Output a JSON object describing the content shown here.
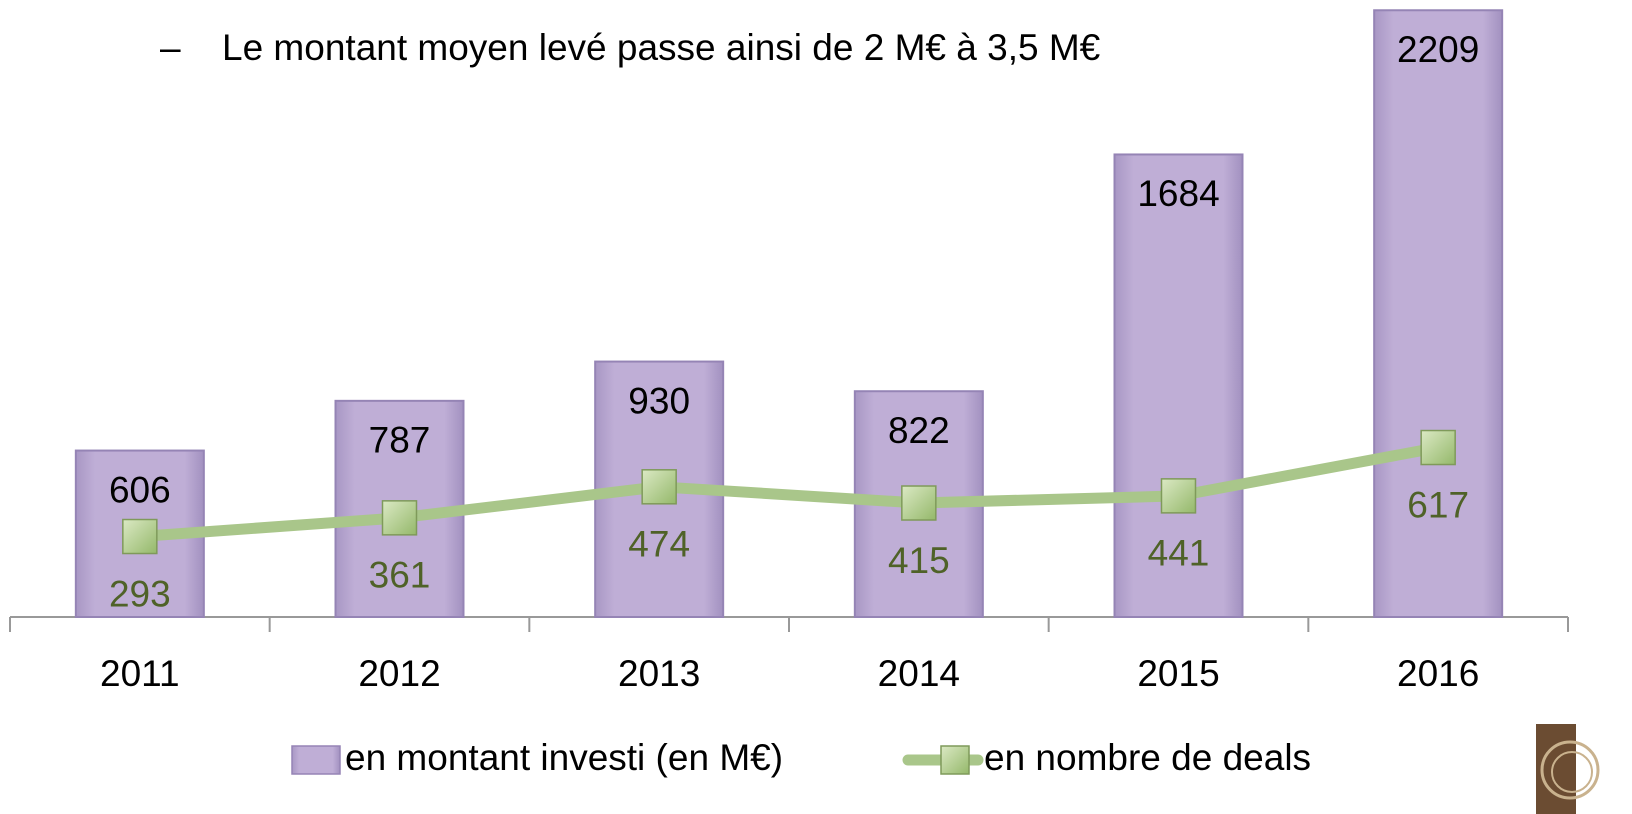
{
  "chart_data": {
    "type": "bar",
    "bullet": "–",
    "subtitle": "Le montant moyen levé passe ainsi de 2 M€ à 3,5 M€",
    "categories": [
      "2011",
      "2012",
      "2013",
      "2014",
      "2015",
      "2016"
    ],
    "series": [
      {
        "name": "en montant investi (en M€)",
        "type": "bar",
        "color": "#bfaed6",
        "values": [
          606,
          787,
          930,
          822,
          1684,
          2209
        ]
      },
      {
        "name": "en nombre de deals",
        "type": "line",
        "axis": "y2",
        "color": "#a9c68a",
        "values": [
          293,
          361,
          474,
          415,
          441,
          617
        ]
      }
    ],
    "ylim": [
      0,
      2250
    ],
    "y2lim": [
      0,
      2250
    ],
    "grid": false
  }
}
